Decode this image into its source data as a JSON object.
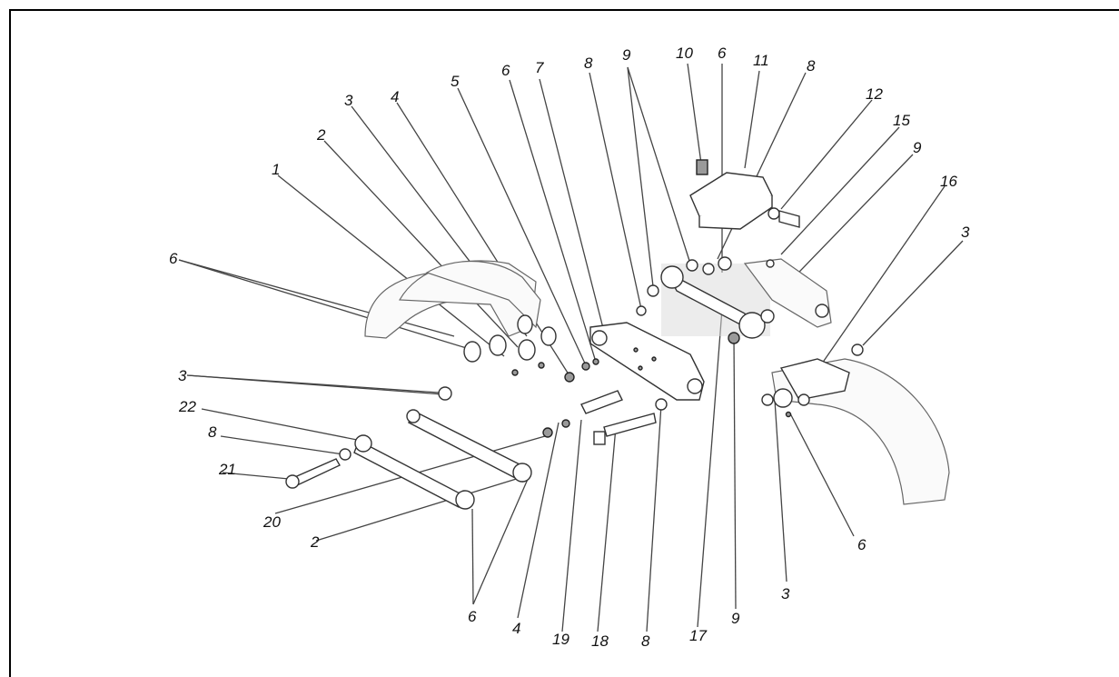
{
  "figure": {
    "callouts": [
      {
        "id": "c1",
        "text": "1"
      },
      {
        "id": "c2a",
        "text": "2"
      },
      {
        "id": "c2b",
        "text": "2"
      },
      {
        "id": "c3a",
        "text": "3"
      },
      {
        "id": "c3b",
        "text": "3"
      },
      {
        "id": "c3c",
        "text": "3"
      },
      {
        "id": "c3d",
        "text": "3"
      },
      {
        "id": "c4a",
        "text": "4"
      },
      {
        "id": "c4b",
        "text": "4"
      },
      {
        "id": "c5",
        "text": "5"
      },
      {
        "id": "c6a",
        "text": "6"
      },
      {
        "id": "c6b",
        "text": "6"
      },
      {
        "id": "c6c",
        "text": "6"
      },
      {
        "id": "c6d",
        "text": "6"
      },
      {
        "id": "c6e",
        "text": "6"
      },
      {
        "id": "c7",
        "text": "7"
      },
      {
        "id": "c8a",
        "text": "8"
      },
      {
        "id": "c8b",
        "text": "8"
      },
      {
        "id": "c8c",
        "text": "8"
      },
      {
        "id": "c8d",
        "text": "8"
      },
      {
        "id": "c9a",
        "text": "9"
      },
      {
        "id": "c9b",
        "text": "9"
      },
      {
        "id": "c9c",
        "text": "9"
      },
      {
        "id": "c10",
        "text": "10"
      },
      {
        "id": "c11",
        "text": "11"
      },
      {
        "id": "c12",
        "text": "12"
      },
      {
        "id": "c15",
        "text": "15"
      },
      {
        "id": "c16",
        "text": "16"
      },
      {
        "id": "c17",
        "text": "17"
      },
      {
        "id": "c18",
        "text": "18"
      },
      {
        "id": "c19",
        "text": "19"
      },
      {
        "id": "c20",
        "text": "20"
      },
      {
        "id": "c21",
        "text": "21"
      },
      {
        "id": "c22",
        "text": "22"
      }
    ]
  }
}
